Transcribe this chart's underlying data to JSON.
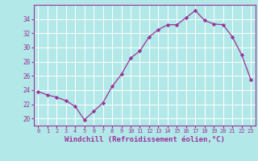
{
  "x": [
    0,
    1,
    2,
    3,
    4,
    5,
    6,
    7,
    8,
    9,
    10,
    11,
    12,
    13,
    14,
    15,
    16,
    17,
    18,
    19,
    20,
    21,
    22,
    23
  ],
  "y": [
    23.8,
    23.3,
    23.0,
    22.5,
    21.7,
    19.8,
    21.0,
    22.2,
    24.5,
    26.2,
    28.5,
    29.5,
    31.5,
    32.5,
    33.2,
    33.2,
    34.2,
    35.2,
    33.8,
    33.3,
    33.2,
    31.5,
    29.0,
    25.5
  ],
  "line_color": "#993399",
  "marker": "D",
  "marker_size": 2.2,
  "bg_color": "#b2e8e8",
  "grid_color": "#ffffff",
  "xlabel": "Windchill (Refroidissement éolien,°C)",
  "xlabel_fontsize": 6.5,
  "ylim": [
    19,
    36
  ],
  "xlim": [
    -0.5,
    23.5
  ],
  "yticks": [
    20,
    22,
    24,
    26,
    28,
    30,
    32,
    34
  ],
  "xticks": [
    0,
    1,
    2,
    3,
    4,
    5,
    6,
    7,
    8,
    9,
    10,
    11,
    12,
    13,
    14,
    15,
    16,
    17,
    18,
    19,
    20,
    21,
    22,
    23
  ],
  "tick_color": "#993399",
  "ytick_fontsize": 5.5,
  "xtick_fontsize": 5.0,
  "axis_label_color": "#993399",
  "spine_color": "#993399"
}
